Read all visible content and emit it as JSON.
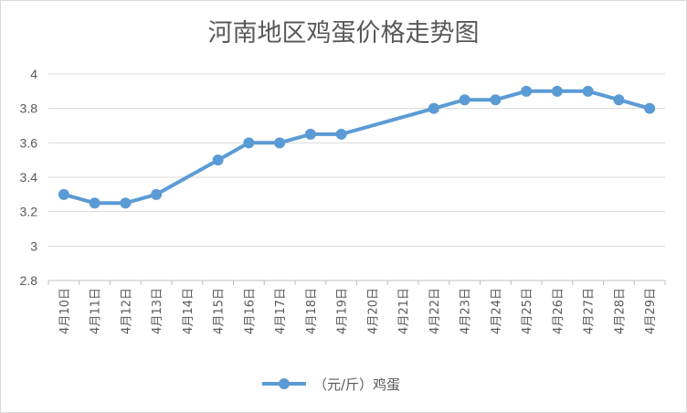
{
  "chart_data": {
    "type": "line",
    "title": "河南地区鸡蛋价格走势图",
    "categories": [
      "4月10日",
      "4月11日",
      "4月12日",
      "4月13日",
      "4月14日",
      "4月15日",
      "4月16日",
      "4月17日",
      "4月18日",
      "4月19日",
      "4月20日",
      "4月21日",
      "4月22日",
      "4月23日",
      "4月24日",
      "4月25日",
      "4月26日",
      "4月27日",
      "4月28日",
      "4月29日"
    ],
    "series": [
      {
        "name": "（元/斤）鸡蛋",
        "values": [
          3.3,
          3.25,
          3.25,
          3.3,
          null,
          3.5,
          3.6,
          3.6,
          3.65,
          3.65,
          null,
          null,
          3.8,
          3.85,
          3.85,
          3.9,
          3.9,
          3.9,
          3.85,
          3.8
        ]
      }
    ],
    "ylim": [
      2.8,
      4
    ],
    "yticks": [
      "2.8",
      "3",
      "3.2",
      "3.4",
      "3.6",
      "3.8",
      "4"
    ],
    "grid": true,
    "legend": "bottom",
    "color": "#5b9bd5"
  }
}
